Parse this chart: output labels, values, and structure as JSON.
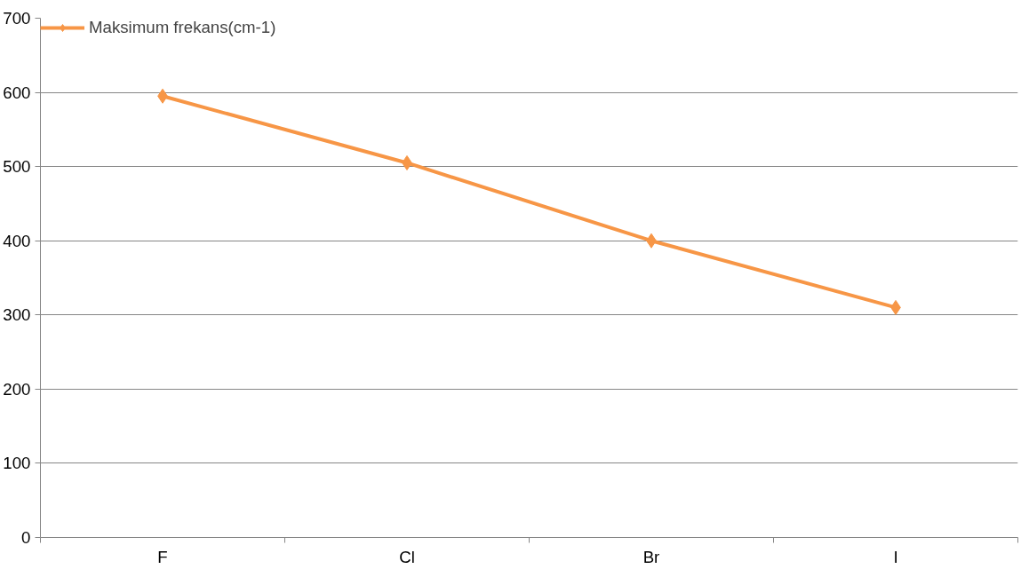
{
  "chart_data": {
    "type": "line",
    "categories": [
      "F",
      "Cl",
      "Br",
      "I"
    ],
    "series": [
      {
        "name": "Maksimum frekans(cm-1)",
        "color": "#f79646",
        "values": [
          595,
          505,
          400,
          310
        ]
      }
    ],
    "ylim": [
      0,
      700
    ],
    "yticks": [
      0,
      100,
      200,
      300,
      400,
      500,
      600,
      700
    ],
    "grid": "y",
    "legend": "top left",
    "marker": "diamond",
    "line_style": "solid"
  }
}
